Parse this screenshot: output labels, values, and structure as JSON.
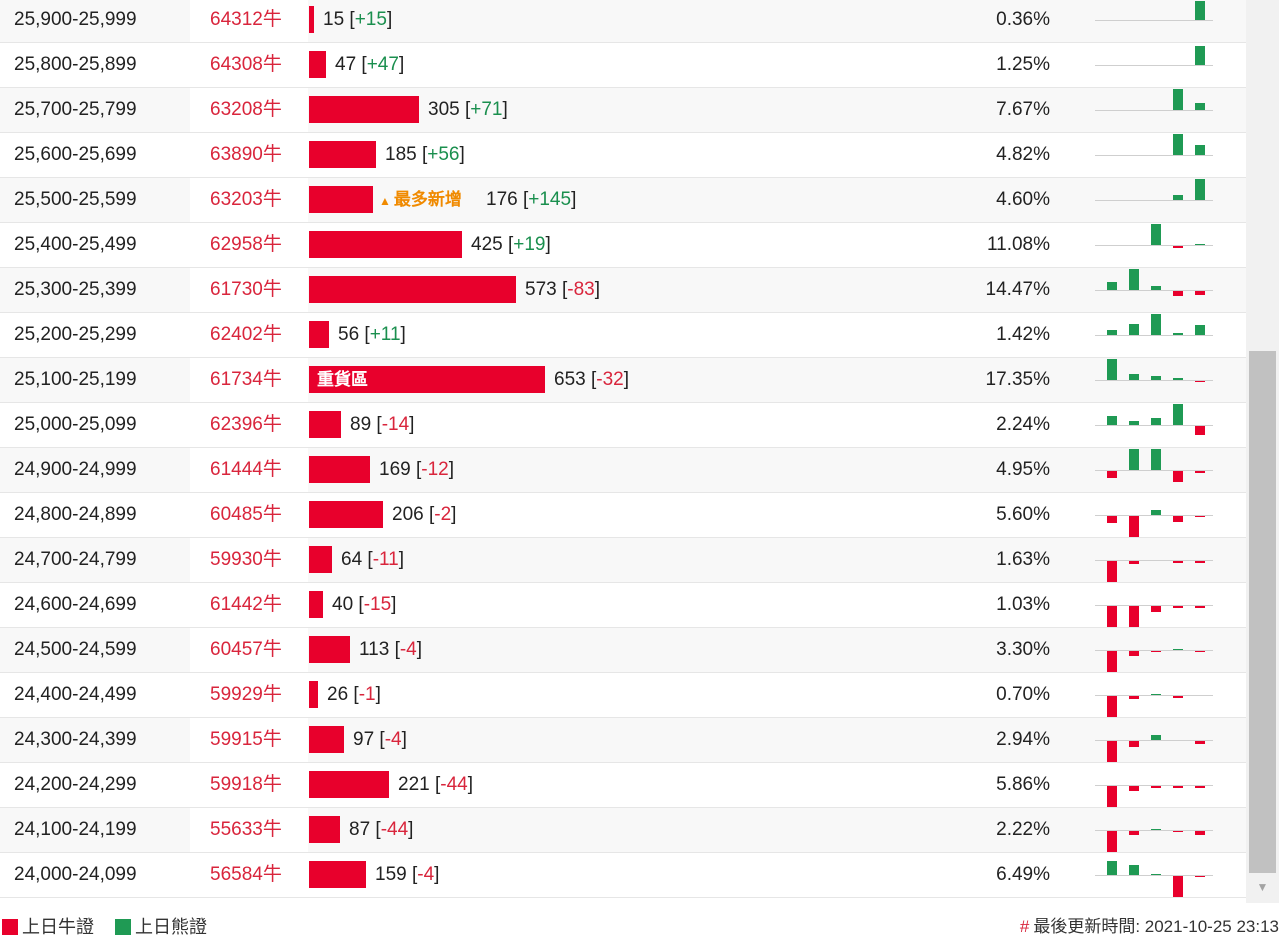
{
  "colors": {
    "bull": "#e8002c",
    "bear": "#1f9a54",
    "positive_change": "#1a8f4e",
    "negative_change": "#d9253c",
    "highlight_tag": "#f08a00"
  },
  "rows": [
    {
      "range": "25,900-25,999",
      "code": "64312牛",
      "count": "15",
      "change": "+15",
      "pct": "0.36%",
      "bar": 15,
      "mini": [
        0,
        0,
        0,
        0,
        2.0
      ]
    },
    {
      "range": "25,800-25,899",
      "code": "64308牛",
      "count": "47",
      "change": "+47",
      "pct": "1.25%",
      "bar": 47,
      "mini": [
        0,
        0,
        0,
        0,
        2.0
      ]
    },
    {
      "range": "25,700-25,799",
      "code": "63208牛",
      "count": "305",
      "change": "+71",
      "pct": "7.67%",
      "bar": 305,
      "mini": [
        0,
        0,
        0,
        2.2,
        0.7
      ]
    },
    {
      "range": "25,600-25,699",
      "code": "63890牛",
      "count": "185",
      "change": "+56",
      "pct": "4.82%",
      "bar": 185,
      "mini": [
        0,
        0,
        0,
        2.2,
        1.0
      ]
    },
    {
      "range": "25,500-25,599",
      "code": "63203牛",
      "count": "176",
      "change": "+145",
      "pct": "4.60%",
      "bar": 176,
      "tag": "最多新增",
      "mini": [
        0,
        0,
        0,
        0.5,
        2.2
      ]
    },
    {
      "range": "25,400-25,499",
      "code": "62958牛",
      "count": "425",
      "change": "+19",
      "pct": "11.08%",
      "bar": 425,
      "mini": [
        0,
        0,
        2.2,
        -0.2,
        0.1
      ]
    },
    {
      "range": "25,300-25,399",
      "code": "61730牛",
      "count": "573",
      "change": "-83",
      "pct": "14.47%",
      "bar": 573,
      "mini": [
        0.8,
        2.2,
        0.4,
        -0.5,
        -0.4
      ]
    },
    {
      "range": "25,200-25,299",
      "code": "62402牛",
      "count": "56",
      "change": "+11",
      "pct": "1.42%",
      "bar": 56,
      "mini": [
        0.5,
        1.2,
        2.2,
        0.2,
        1.1
      ]
    },
    {
      "range": "25,100-25,199",
      "code": "61734牛",
      "count": "653",
      "change": "-32",
      "pct": "17.35%",
      "bar": 653,
      "heavy": "重貨區",
      "mini": [
        2.2,
        0.6,
        0.4,
        0.2,
        -0.1
      ]
    },
    {
      "range": "25,000-25,099",
      "code": "62396牛",
      "count": "89",
      "change": "-14",
      "pct": "2.24%",
      "bar": 89,
      "mini": [
        0.9,
        0.4,
        0.7,
        2.2,
        -0.9
      ]
    },
    {
      "range": "24,900-24,999",
      "code": "61444牛",
      "count": "169",
      "change": "-12",
      "pct": "4.95%",
      "bar": 169,
      "mini": [
        -0.7,
        2.2,
        2.2,
        -1.2,
        -0.2
      ]
    },
    {
      "range": "24,800-24,899",
      "code": "60485牛",
      "count": "206",
      "change": "-2",
      "pct": "5.60%",
      "bar": 206,
      "mini": [
        -0.7,
        -2.2,
        0.5,
        -0.6,
        -0.1
      ]
    },
    {
      "range": "24,700-24,799",
      "code": "59930牛",
      "count": "64",
      "change": "-11",
      "pct": "1.63%",
      "bar": 64,
      "mini": [
        -2.2,
        -0.3,
        0,
        -0.2,
        -0.2
      ]
    },
    {
      "range": "24,600-24,699",
      "code": "61442牛",
      "count": "40",
      "change": "-15",
      "pct": "1.03%",
      "bar": 40,
      "mini": [
        -2.2,
        -2.2,
        -0.6,
        -0.2,
        -0.2
      ]
    },
    {
      "range": "24,500-24,599",
      "code": "60457牛",
      "count": "113",
      "change": "-4",
      "pct": "3.30%",
      "bar": 113,
      "mini": [
        -2.2,
        -0.5,
        -0.1,
        0.1,
        -0.1
      ]
    },
    {
      "range": "24,400-24,499",
      "code": "59929牛",
      "count": "26",
      "change": "-1",
      "pct": "0.70%",
      "bar": 26,
      "mini": [
        -2.2,
        -0.3,
        0.1,
        -0.2,
        0
      ]
    },
    {
      "range": "24,300-24,399",
      "code": "59915牛",
      "count": "97",
      "change": "-4",
      "pct": "2.94%",
      "bar": 97,
      "mini": [
        -2.2,
        -0.6,
        0.5,
        0,
        -0.3
      ]
    },
    {
      "range": "24,200-24,299",
      "code": "59918牛",
      "count": "221",
      "change": "-44",
      "pct": "5.86%",
      "bar": 221,
      "mini": [
        -2.2,
        -0.5,
        -0.2,
        -0.2,
        -0.2
      ]
    },
    {
      "range": "24,100-24,199",
      "code": "55633牛",
      "count": "87",
      "change": "-44",
      "pct": "2.22%",
      "bar": 87,
      "mini": [
        -2.2,
        -0.4,
        0.1,
        -0.1,
        -0.4
      ]
    },
    {
      "range": "24,000-24,099",
      "code": "56584牛",
      "count": "159",
      "change": "-4",
      "pct": "6.49%",
      "bar": 159,
      "mini": [
        1.5,
        1.0,
        0.1,
        -2.2,
        -0.1
      ]
    }
  ],
  "legend": {
    "bull_label": "上日牛證",
    "bear_label": "上日熊證"
  },
  "update": {
    "hash": "#",
    "label": "最後更新時間: 2021-10-25 23:13"
  }
}
